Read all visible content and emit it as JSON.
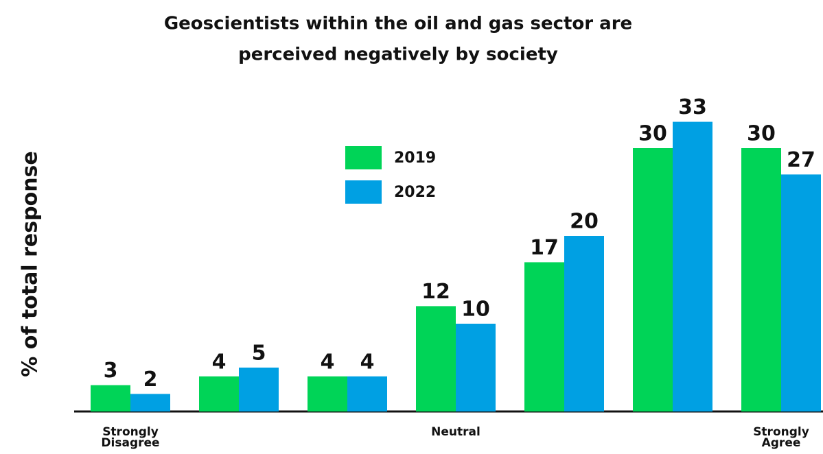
{
  "chart_data": {
    "type": "bar",
    "title": [
      "Geoscientists within the oil and gas sector are",
      "perceived negatively by society"
    ],
    "ylabel": "% of total response",
    "categories": [
      [
        "Strongly",
        "Disagree"
      ],
      null,
      null,
      [
        "Neutral"
      ],
      null,
      null,
      [
        "Strongly",
        "Agree"
      ]
    ],
    "series": [
      {
        "name": "2019",
        "color": "#00d457",
        "values": [
          3,
          4,
          4,
          12,
          17,
          30,
          30
        ]
      },
      {
        "name": "2022",
        "color": "#00a0e3",
        "values": [
          2,
          5,
          4,
          10,
          20,
          33,
          27
        ]
      }
    ],
    "ylim": [
      0,
      35
    ],
    "legend": "center"
  }
}
